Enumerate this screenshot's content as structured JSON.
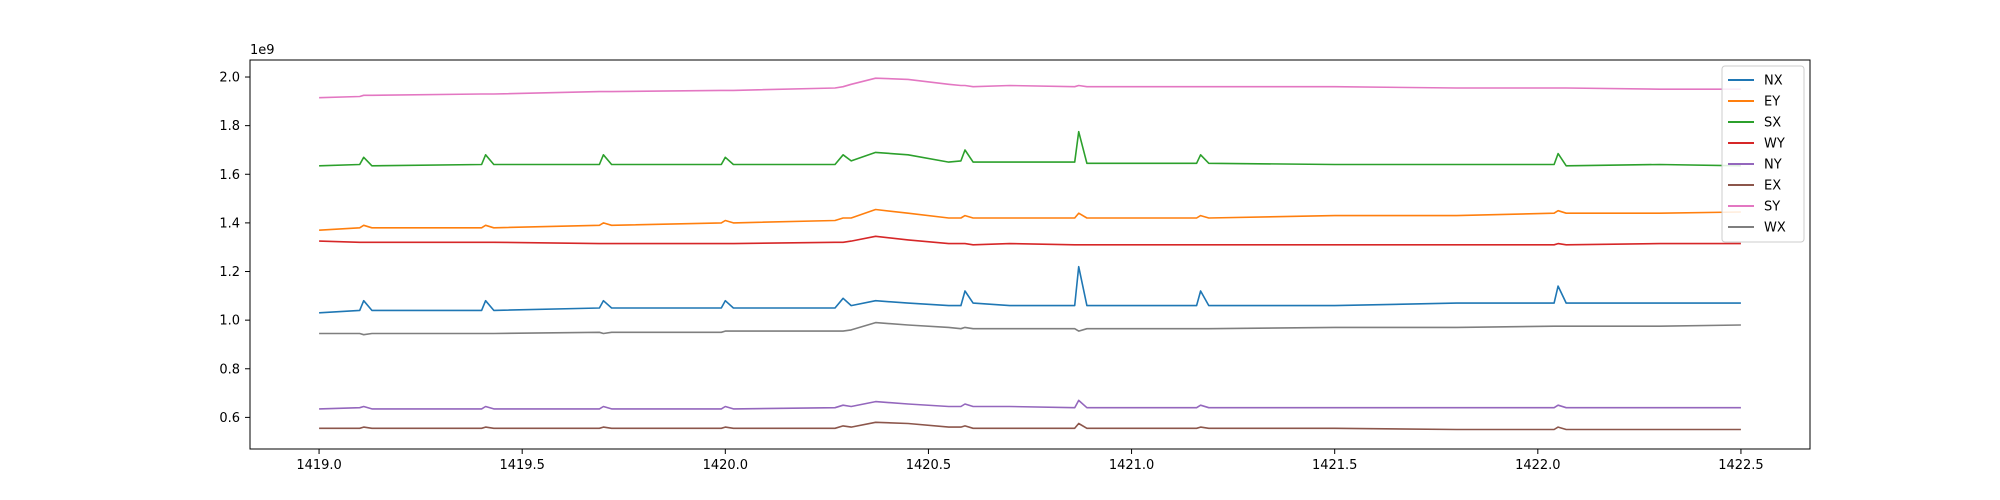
{
  "chart_data": {
    "type": "line",
    "title": "",
    "xlabel": "",
    "ylabel": "",
    "y_offset_label": "1e9",
    "xlim": [
      1418.83,
      1422.67
    ],
    "ylim": [
      0.47,
      2.07
    ],
    "y_scale": 1000000000,
    "grid": false,
    "legend_position": "top-right",
    "x_ticks": [
      1419.0,
      1419.5,
      1420.0,
      1420.5,
      1421.0,
      1421.5,
      1422.0,
      1422.5
    ],
    "x_tick_labels": [
      "1419.0",
      "1419.5",
      "1420.0",
      "1420.5",
      "1421.0",
      "1421.5",
      "1422.0",
      "1422.5"
    ],
    "y_ticks": [
      0.6,
      0.8,
      1.0,
      1.2,
      1.4,
      1.6,
      1.8,
      2.0
    ],
    "y_tick_labels": [
      "0.6",
      "0.8",
      "1.0",
      "1.2",
      "1.4",
      "1.6",
      "1.8",
      "2.0"
    ],
    "x": [
      1419.0,
      1419.1,
      1419.11,
      1419.13,
      1419.4,
      1419.41,
      1419.43,
      1419.69,
      1419.7,
      1419.72,
      1419.99,
      1420.0,
      1420.02,
      1420.27,
      1420.29,
      1420.31,
      1420.37,
      1420.45,
      1420.55,
      1420.58,
      1420.59,
      1420.61,
      1420.7,
      1420.86,
      1420.87,
      1420.89,
      1421.16,
      1421.17,
      1421.19,
      1421.5,
      1421.8,
      1422.04,
      1422.05,
      1422.07,
      1422.3,
      1422.5
    ],
    "series": [
      {
        "name": "NX",
        "color": "#1f77b4",
        "values": [
          1.03,
          1.04,
          1.08,
          1.04,
          1.04,
          1.08,
          1.04,
          1.05,
          1.08,
          1.05,
          1.05,
          1.08,
          1.05,
          1.05,
          1.09,
          1.06,
          1.08,
          1.07,
          1.06,
          1.06,
          1.12,
          1.07,
          1.06,
          1.06,
          1.22,
          1.06,
          1.06,
          1.12,
          1.06,
          1.06,
          1.07,
          1.07,
          1.14,
          1.07,
          1.07,
          1.07
        ]
      },
      {
        "name": "EY",
        "color": "#ff7f0e",
        "values": [
          1.37,
          1.38,
          1.39,
          1.38,
          1.38,
          1.39,
          1.38,
          1.39,
          1.4,
          1.39,
          1.4,
          1.41,
          1.4,
          1.41,
          1.42,
          1.42,
          1.455,
          1.44,
          1.42,
          1.42,
          1.43,
          1.42,
          1.42,
          1.42,
          1.44,
          1.42,
          1.42,
          1.43,
          1.42,
          1.43,
          1.43,
          1.44,
          1.45,
          1.44,
          1.44,
          1.445
        ]
      },
      {
        "name": "SX",
        "color": "#2ca02c",
        "values": [
          1.635,
          1.64,
          1.67,
          1.635,
          1.64,
          1.68,
          1.64,
          1.64,
          1.68,
          1.64,
          1.64,
          1.67,
          1.64,
          1.64,
          1.68,
          1.655,
          1.69,
          1.68,
          1.65,
          1.655,
          1.7,
          1.65,
          1.65,
          1.65,
          1.775,
          1.645,
          1.645,
          1.68,
          1.645,
          1.64,
          1.64,
          1.64,
          1.685,
          1.635,
          1.64,
          1.635
        ]
      },
      {
        "name": "WY",
        "color": "#d62728",
        "values": [
          1.325,
          1.32,
          1.32,
          1.32,
          1.32,
          1.32,
          1.32,
          1.315,
          1.315,
          1.315,
          1.315,
          1.315,
          1.315,
          1.32,
          1.32,
          1.325,
          1.345,
          1.33,
          1.315,
          1.315,
          1.315,
          1.31,
          1.315,
          1.31,
          1.31,
          1.31,
          1.31,
          1.31,
          1.31,
          1.31,
          1.31,
          1.31,
          1.315,
          1.31,
          1.315,
          1.315
        ]
      },
      {
        "name": "NY",
        "color": "#9467bd",
        "values": [
          0.635,
          0.64,
          0.645,
          0.635,
          0.635,
          0.645,
          0.635,
          0.635,
          0.645,
          0.635,
          0.635,
          0.645,
          0.635,
          0.64,
          0.65,
          0.645,
          0.665,
          0.655,
          0.645,
          0.645,
          0.655,
          0.645,
          0.645,
          0.64,
          0.67,
          0.64,
          0.64,
          0.65,
          0.64,
          0.64,
          0.64,
          0.64,
          0.65,
          0.64,
          0.64,
          0.64
        ]
      },
      {
        "name": "EX",
        "color": "#8c564b",
        "values": [
          0.555,
          0.555,
          0.56,
          0.555,
          0.555,
          0.56,
          0.555,
          0.555,
          0.56,
          0.555,
          0.555,
          0.56,
          0.555,
          0.555,
          0.565,
          0.56,
          0.58,
          0.575,
          0.56,
          0.56,
          0.565,
          0.555,
          0.555,
          0.555,
          0.575,
          0.555,
          0.555,
          0.56,
          0.555,
          0.555,
          0.55,
          0.55,
          0.56,
          0.55,
          0.55,
          0.55
        ]
      },
      {
        "name": "SY",
        "color": "#e377c2",
        "values": [
          1.915,
          1.92,
          1.925,
          1.925,
          1.93,
          1.93,
          1.93,
          1.94,
          1.94,
          1.94,
          1.945,
          1.945,
          1.945,
          1.955,
          1.96,
          1.97,
          1.995,
          1.99,
          1.97,
          1.965,
          1.965,
          1.96,
          1.965,
          1.96,
          1.965,
          1.96,
          1.96,
          1.96,
          1.96,
          1.96,
          1.955,
          1.955,
          1.955,
          1.955,
          1.95,
          1.95
        ]
      },
      {
        "name": "WX",
        "color": "#7f7f7f",
        "values": [
          0.945,
          0.945,
          0.94,
          0.945,
          0.945,
          0.945,
          0.945,
          0.95,
          0.945,
          0.95,
          0.95,
          0.955,
          0.955,
          0.955,
          0.955,
          0.96,
          0.99,
          0.98,
          0.97,
          0.965,
          0.97,
          0.965,
          0.965,
          0.965,
          0.955,
          0.965,
          0.965,
          0.965,
          0.965,
          0.97,
          0.97,
          0.975,
          0.975,
          0.975,
          0.975,
          0.98
        ]
      }
    ]
  }
}
